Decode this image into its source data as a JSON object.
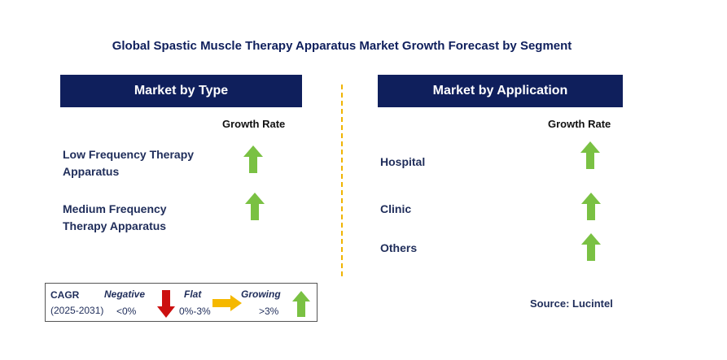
{
  "title": "Global Spastic Muscle Therapy Apparatus Market Growth Forecast by Segment",
  "type_panel": {
    "header": "Market by Type",
    "growth_label": "Growth Rate",
    "items": [
      {
        "line1": "Low Frequency Therapy",
        "line2": "Apparatus",
        "trend": "growing"
      },
      {
        "line1": "Medium Frequency",
        "line2": "Therapy Apparatus",
        "trend": "growing"
      }
    ]
  },
  "application_panel": {
    "header": "Market by Application",
    "growth_label": "Growth Rate",
    "items": [
      {
        "label": "Hospital",
        "trend": "growing"
      },
      {
        "label": "Clinic",
        "trend": "growing"
      },
      {
        "label": "Others",
        "trend": "growing"
      }
    ]
  },
  "legend": {
    "cagr_label": "CAGR",
    "period": "(2025-2031)",
    "negative_label": "Negative",
    "negative_range": "<0%",
    "flat_label": "Flat",
    "flat_range": "0%-3%",
    "growing_label": "Growing",
    "growing_range": ">3%"
  },
  "source": "Source: Lucintel",
  "colors": {
    "header_bg": "#0f1f5c",
    "arrow_up": "#7ac143",
    "arrow_down": "#cc1010",
    "arrow_flat": "#f5b800",
    "divider": "#f0b400"
  }
}
